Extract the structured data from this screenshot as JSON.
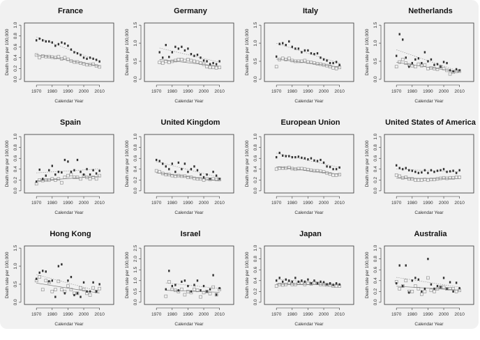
{
  "chart_data": [
    {
      "type": "scatter",
      "title": "France",
      "ylim": [
        0,
        1.0
      ],
      "yticks": [
        0,
        0.2,
        0.4,
        0.6,
        0.8,
        1.0
      ],
      "filled": [
        0.72,
        0.75,
        0.72,
        0.7,
        0.7,
        0.68,
        0.62,
        0.65,
        0.68,
        0.66,
        0.62,
        0.55,
        0.5,
        0.48,
        0.45,
        0.4,
        0.38,
        0.4,
        0.38,
        0.36,
        0.33
      ],
      "open": [
        0.45,
        0.4,
        0.43,
        0.42,
        0.42,
        0.41,
        0.4,
        0.42,
        0.38,
        0.4,
        0.37,
        0.34,
        0.32,
        0.32,
        0.3,
        0.29,
        0.27,
        0.27,
        0.28,
        0.25,
        0.23
      ]
    },
    {
      "type": "scatter",
      "title": "Germany",
      "ylim": [
        0,
        1.5
      ],
      "yticks": [
        0,
        0.5,
        1.0,
        1.5
      ],
      "filled": [
        null,
        0.75,
        0.6,
        0.95,
        0.62,
        0.75,
        0.9,
        0.85,
        0.9,
        0.8,
        0.85,
        0.7,
        0.65,
        0.68,
        0.6,
        0.52,
        0.5,
        0.42,
        0.45,
        0.42,
        0.5
      ],
      "open": [
        null,
        0.47,
        0.45,
        0.5,
        0.47,
        0.5,
        0.52,
        0.55,
        0.55,
        0.52,
        0.55,
        0.52,
        0.5,
        0.48,
        0.45,
        0.42,
        0.35,
        0.33,
        0.33,
        0.32,
        0.33
      ]
    },
    {
      "type": "scatter",
      "title": "Italy",
      "ylim": [
        0,
        1.5
      ],
      "yticks": [
        0,
        0.5,
        1.0,
        1.5
      ],
      "filled": [
        0.63,
        0.98,
        1.0,
        0.95,
        1.05,
        0.9,
        0.85,
        0.85,
        0.75,
        0.8,
        0.8,
        0.72,
        0.7,
        0.72,
        0.6,
        0.55,
        0.52,
        0.45,
        0.45,
        0.48,
        0.4
      ],
      "open": [
        0.35,
        0.55,
        0.58,
        0.55,
        0.58,
        0.52,
        0.5,
        0.5,
        0.5,
        0.52,
        0.48,
        0.47,
        0.45,
        0.43,
        0.42,
        0.4,
        0.38,
        0.35,
        0.32,
        0.3,
        0.33
      ]
    },
    {
      "type": "scatter",
      "title": "Netherlands",
      "ylim": [
        0,
        1.5
      ],
      "yticks": [
        0,
        0.5,
        1.0,
        1.5
      ],
      "filled": [
        0.65,
        1.25,
        1.1,
        0.6,
        0.35,
        0.45,
        0.55,
        0.58,
        0.45,
        0.75,
        0.5,
        0.55,
        0.4,
        0.42,
        0.35,
        0.48,
        0.45,
        0.25,
        0.22,
        0.28,
        0.25
      ],
      "open": [
        0.35,
        0.48,
        0.55,
        0.45,
        0.4,
        0.38,
        0.35,
        0.42,
        0.38,
        0.4,
        0.3,
        0.32,
        0.3,
        0.28,
        0.35,
        0.3,
        0.25,
        0.15,
        0.2,
        0.22,
        0.23
      ]
    },
    {
      "type": "scatter",
      "title": "Spain",
      "ylim": [
        0,
        1.0
      ],
      "yticks": [
        0,
        0.2,
        0.4,
        0.6,
        0.8,
        1.0
      ],
      "filled": [
        0.17,
        0.39,
        0.22,
        0.28,
        0.38,
        0.46,
        0.3,
        0.35,
        0.34,
        0.57,
        0.54,
        0.35,
        0.38,
        0.57,
        0.35,
        0.3,
        0.4,
        0.3,
        0.38,
        0.32,
        0.37
      ],
      "open": [
        0.13,
        0.2,
        0.19,
        0.2,
        0.2,
        0.22,
        0.2,
        0.22,
        0.15,
        0.25,
        0.28,
        0.3,
        0.25,
        0.25,
        0.22,
        0.28,
        0.25,
        0.22,
        0.25,
        0.22,
        0.28
      ]
    },
    {
      "type": "scatter",
      "title": "United Kingdom",
      "ylim": [
        0,
        1.0
      ],
      "yticks": [
        0,
        0.2,
        0.4,
        0.6,
        0.8,
        1.0
      ],
      "filled": [
        0.57,
        0.55,
        0.5,
        0.45,
        0.4,
        0.5,
        0.35,
        0.52,
        0.4,
        0.5,
        0.35,
        0.4,
        0.45,
        0.38,
        0.3,
        0.25,
        0.3,
        0.22,
        0.35,
        0.28,
        0.22
      ],
      "open": [
        0.37,
        0.35,
        0.32,
        0.3,
        0.3,
        0.28,
        0.27,
        0.28,
        0.27,
        0.27,
        0.25,
        0.25,
        0.23,
        0.22,
        0.22,
        0.2,
        0.22,
        0.21,
        0.22,
        0.21,
        0.21
      ]
    },
    {
      "type": "scatter",
      "title": "European Union",
      "ylim": [
        0,
        1.0
      ],
      "yticks": [
        0,
        0.2,
        0.4,
        0.6,
        0.8,
        1.0
      ],
      "filled": [
        0.62,
        0.7,
        0.65,
        0.64,
        0.64,
        0.62,
        0.62,
        0.63,
        0.61,
        0.6,
        0.58,
        0.6,
        0.56,
        0.55,
        0.57,
        0.52,
        0.45,
        0.44,
        0.4,
        0.4,
        0.43
      ],
      "open": [
        0.4,
        0.42,
        0.42,
        0.42,
        0.43,
        0.41,
        0.4,
        0.41,
        0.41,
        0.4,
        0.39,
        0.38,
        0.37,
        0.37,
        0.36,
        0.35,
        0.33,
        0.31,
        0.29,
        0.29,
        0.3
      ]
    },
    {
      "type": "scatter",
      "title": "United States of America",
      "ylim": [
        0,
        1.0
      ],
      "yticks": [
        0,
        0.2,
        0.4,
        0.6,
        0.8,
        1.0
      ],
      "filled": [
        0.47,
        0.42,
        0.4,
        0.42,
        0.38,
        0.37,
        0.35,
        0.33,
        0.34,
        0.38,
        0.33,
        0.38,
        0.35,
        0.37,
        0.38,
        0.4,
        0.35,
        0.36,
        0.37,
        0.33,
        0.38
      ],
      "open": [
        0.29,
        0.27,
        0.24,
        0.25,
        0.22,
        0.22,
        0.2,
        0.2,
        0.2,
        0.21,
        0.2,
        0.21,
        0.21,
        0.22,
        0.23,
        0.24,
        0.23,
        0.24,
        0.24,
        0.25,
        0.25
      ]
    },
    {
      "type": "scatter",
      "title": "Hong Kong",
      "ylim": [
        0,
        1.5
      ],
      "yticks": [
        0,
        0.5,
        1.0,
        1.5
      ],
      "filled": [
        0.65,
        0.82,
        0.87,
        0.85,
        0.58,
        0.6,
        0.15,
        1.0,
        1.05,
        0.25,
        0.6,
        0.7,
        0.2,
        0.25,
        0.15,
        0.55,
        0.3,
        0.3,
        0.55,
        0.3,
        0.5
      ],
      "open": [
        0.6,
        0.7,
        0.35,
        0.6,
        0.55,
        0.3,
        0.35,
        0.58,
        0.35,
        0.3,
        0.45,
        0.35,
        0.25,
        0.25,
        0.4,
        0.35,
        0.25,
        0.2,
        0.4,
        0.3,
        0.38
      ]
    },
    {
      "type": "scatter",
      "title": "Israel",
      "ylim": [
        0,
        2.5
      ],
      "yticks": [
        0,
        0.5,
        1.0,
        1.5,
        2.0,
        2.5
      ],
      "filled": [
        null,
        null,
        null,
        0.6,
        1.45,
        0.75,
        0.8,
        0.55,
        0.95,
        1.0,
        0.75,
        0.5,
        0.8,
        1.0,
        0.55,
        0.75,
        0.5,
        0.6,
        1.25,
        0.35,
        0.65
      ],
      "open": [
        null,
        null,
        null,
        0.28,
        0.95,
        0.6,
        0.55,
        0.5,
        0.6,
        0.35,
        0.5,
        0.45,
        0.6,
        0.55,
        0.25,
        0.45,
        0.5,
        0.4,
        0.7,
        0.35,
        0.6
      ]
    },
    {
      "type": "scatter",
      "title": "Japan",
      "ylim": [
        0,
        1.0
      ],
      "yticks": [
        0,
        0.2,
        0.4,
        0.6,
        0.8,
        1.0
      ],
      "filled": [
        0.4,
        0.45,
        0.38,
        0.42,
        0.4,
        0.38,
        0.45,
        0.38,
        0.4,
        0.38,
        0.42,
        0.35,
        0.4,
        0.35,
        0.38,
        0.37,
        0.33,
        0.35,
        0.32,
        0.35,
        0.33
      ],
      "open": [
        0.3,
        0.33,
        0.32,
        0.33,
        0.35,
        0.33,
        0.33,
        0.35,
        0.35,
        0.33,
        0.35,
        0.34,
        0.36,
        0.35,
        0.33,
        0.33,
        0.32,
        0.32,
        0.3,
        0.3,
        0.3
      ]
    },
    {
      "type": "scatter",
      "title": "Australia",
      "ylim": [
        0,
        1.0
      ],
      "yticks": [
        0,
        0.2,
        0.4,
        0.6,
        0.8,
        1.0
      ],
      "filled": [
        0.35,
        0.68,
        0.3,
        0.68,
        0.18,
        0.4,
        0.45,
        0.42,
        0.2,
        0.25,
        0.8,
        0.33,
        0.25,
        0.3,
        0.28,
        0.45,
        0.25,
        0.37,
        0.2,
        0.36,
        0.26
      ],
      "open": [
        0.38,
        0.25,
        0.3,
        0.4,
        0.2,
        0.2,
        0.3,
        0.25,
        0.15,
        0.2,
        0.45,
        0.22,
        0.2,
        0.25,
        0.28,
        0.28,
        0.25,
        0.25,
        0.25,
        0.2,
        0.22
      ]
    }
  ],
  "shared": {
    "x": [
      1970,
      1972,
      1974,
      1976,
      1978,
      1980,
      1982,
      1984,
      1986,
      1988,
      1990,
      1992,
      1994,
      1996,
      1998,
      2000,
      2002,
      2004,
      2006,
      2008,
      2010
    ],
    "xticks": [
      1970,
      1980,
      1990,
      2000,
      2010
    ],
    "xlabel": "Calendar Year",
    "ylabel": "Death rate per 100,000",
    "marker_colors": {
      "filled": "#333333",
      "open": "#888888"
    },
    "background": "#f1f1f1"
  }
}
